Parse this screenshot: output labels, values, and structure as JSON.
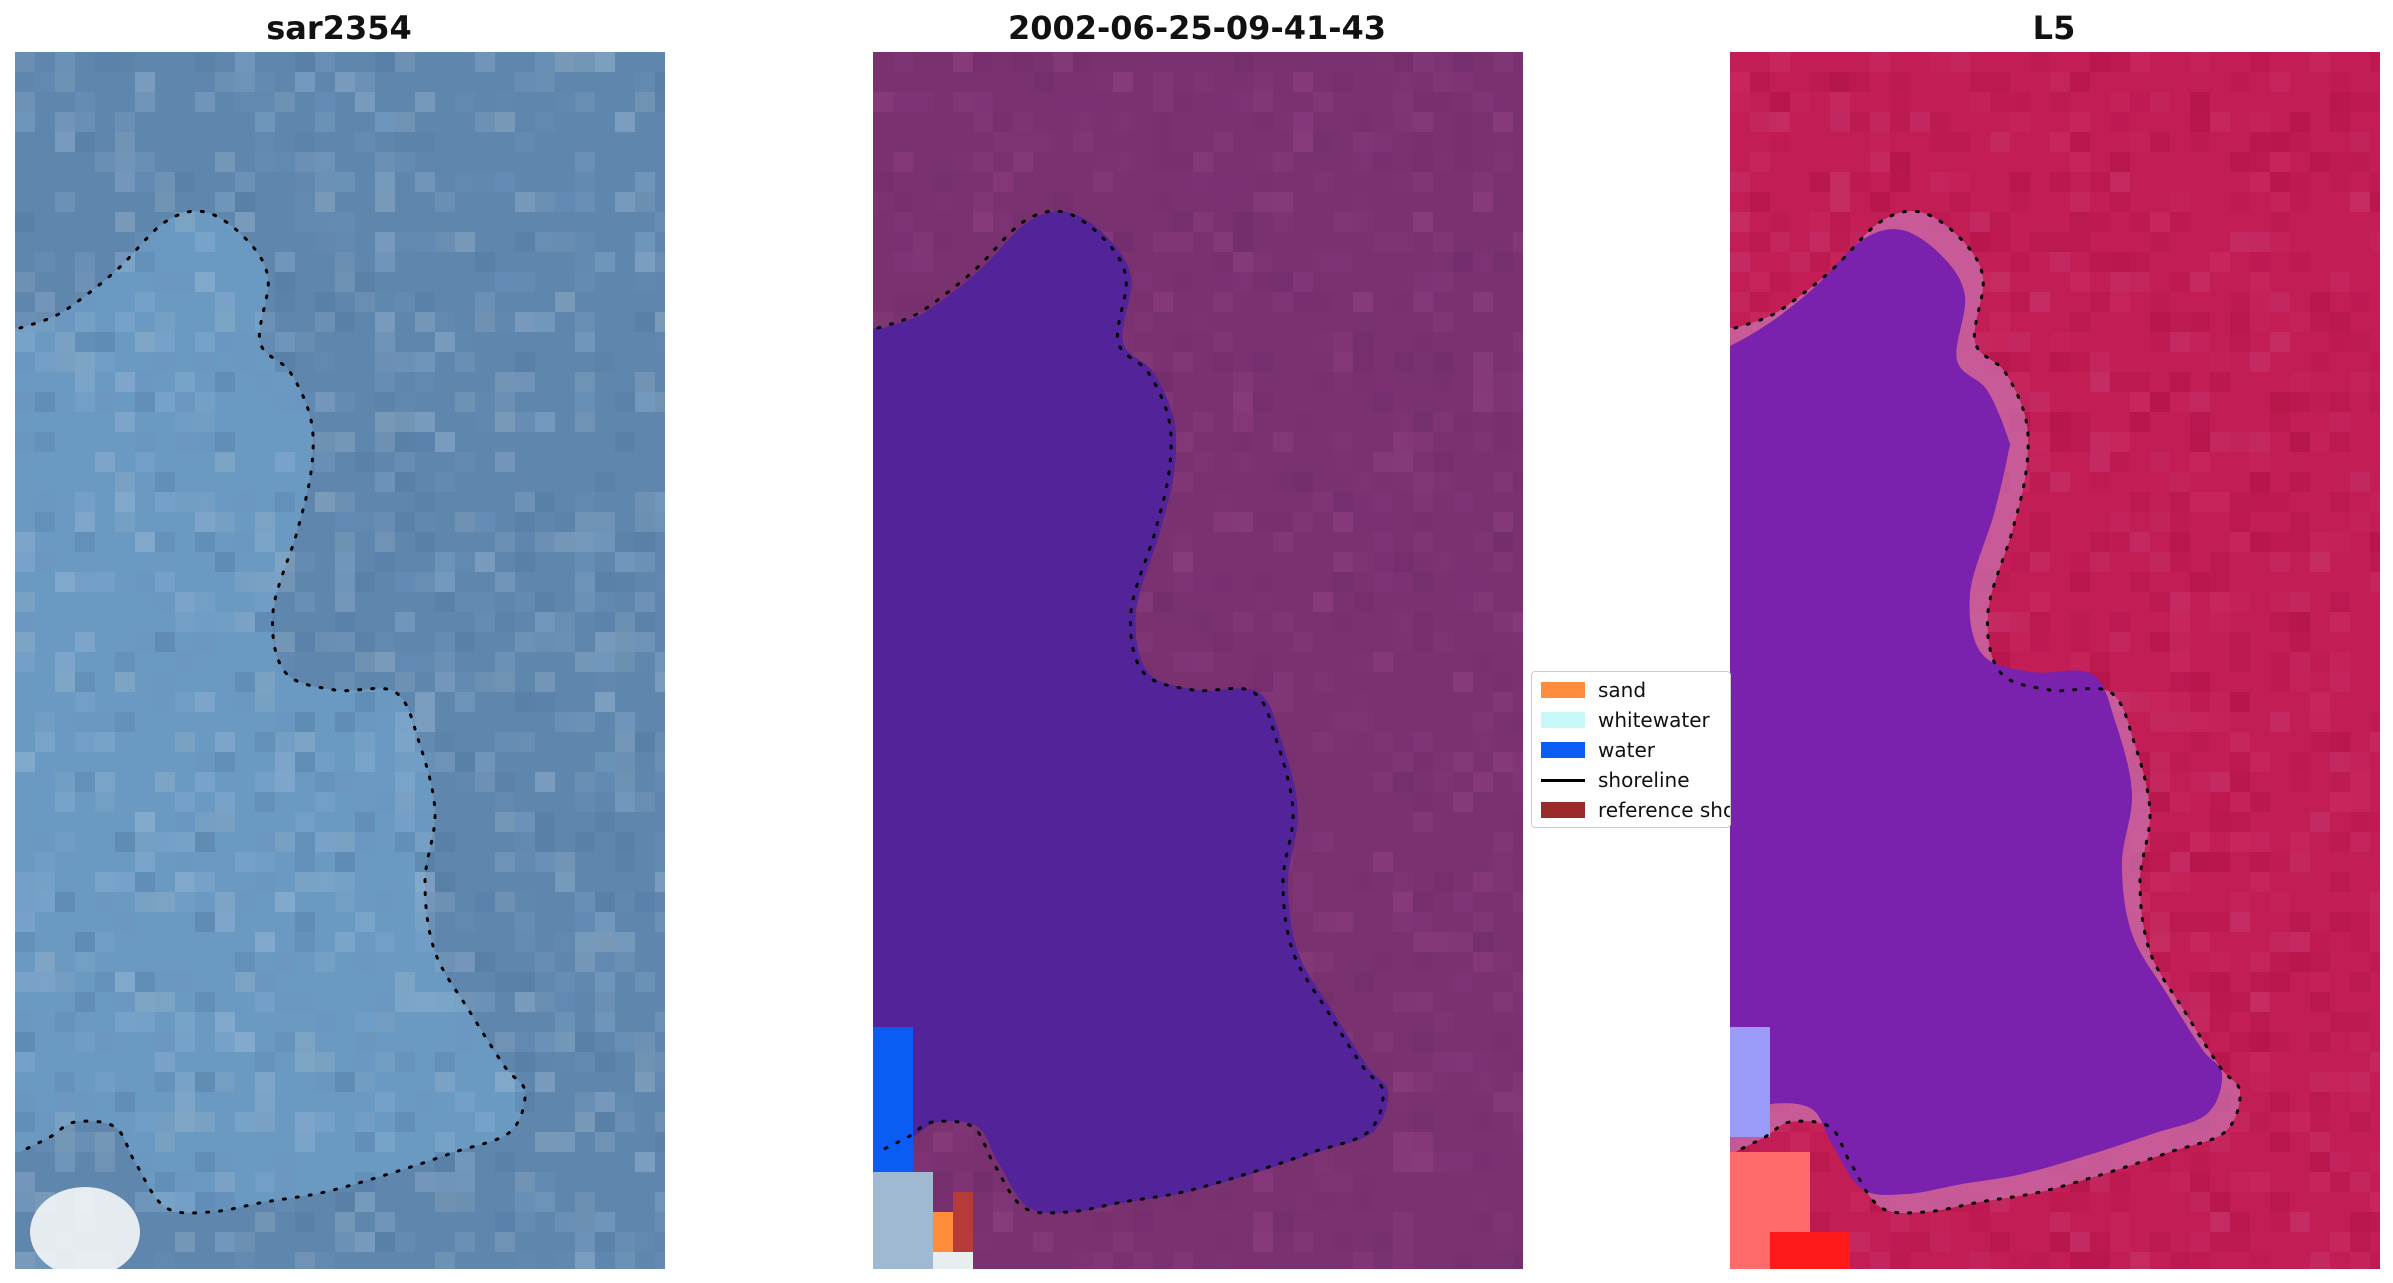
{
  "panels": [
    {
      "title": "sar2354"
    },
    {
      "title": "2002-06-25-09-41-43"
    },
    {
      "title": "L5"
    }
  ],
  "legend": {
    "items": [
      {
        "label": "sand",
        "kind": "patch",
        "color": "#ff8c3a"
      },
      {
        "label": "whitewater",
        "kind": "patch",
        "color": "#c8f8f8"
      },
      {
        "label": "water",
        "kind": "patch",
        "color": "#0a5cf5"
      },
      {
        "label": "shoreline",
        "kind": "line",
        "color": "#000000"
      },
      {
        "label": "reference shoreline",
        "kind": "patch",
        "color": "#9b2b2b"
      }
    ]
  },
  "colors": {
    "rgb_background": "#5f86ad",
    "rgb_lagoon": "#6e9fca",
    "classified_background": "#7a3170",
    "classified_water_region": "#53239a",
    "index_background": "#c21d55",
    "index_water_region": "#7a22ae",
    "shoreline_dots": "#000000"
  }
}
